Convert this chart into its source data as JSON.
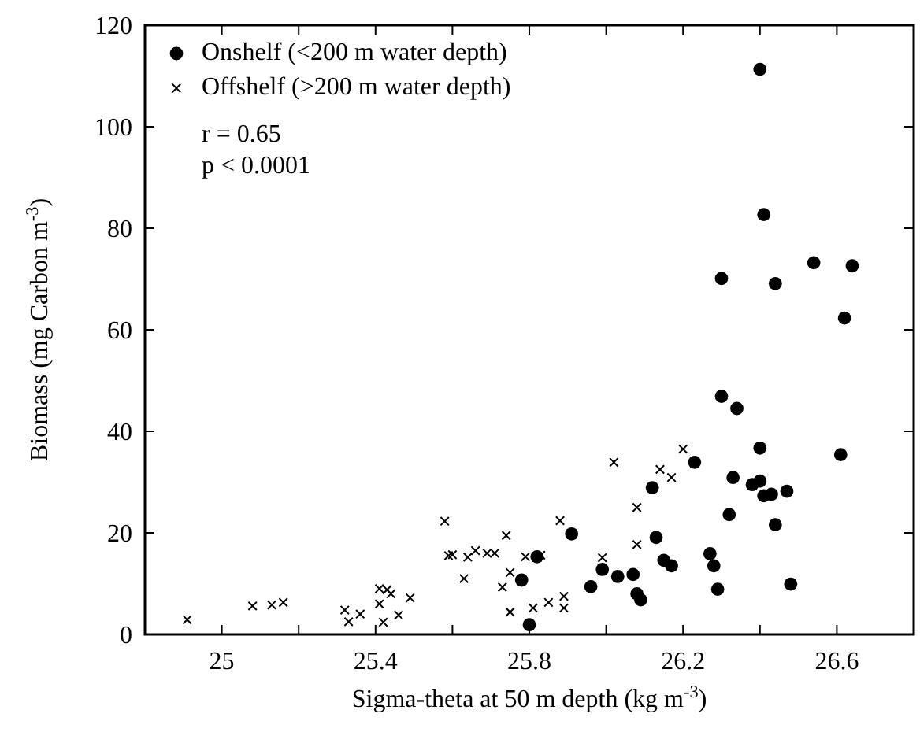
{
  "chart_data": {
    "type": "scatter",
    "xlabel": "Sigma-theta at 50 m depth (kg m$^{-3}$)",
    "ylabel": "Biomass (mg Carbon m$^{-3}$)",
    "xlim": [
      24.8,
      26.8
    ],
    "ylim": [
      0,
      120
    ],
    "xticks": [
      25,
      {
        "value": 25.2,
        "label": null
      },
      25.4,
      {
        "value": 25.6,
        "label": null
      },
      25.8,
      {
        "value": 26,
        "label": null
      },
      26.2,
      {
        "value": 26.4,
        "label": null
      },
      26.6
    ],
    "yticks": [
      0,
      20,
      40,
      60,
      80,
      100,
      120
    ],
    "legend": "top left",
    "grid": false,
    "annotations": [
      "r = 0.65",
      "p < 0.0001"
    ],
    "series": [
      {
        "name": "Onshelf (<200 m water depth)",
        "color": "#000000",
        "marker": "circle",
        "x": [
          25.8,
          25.78,
          25.82,
          25.91,
          25.96,
          25.99,
          26.03,
          26.07,
          26.08,
          26.09,
          26.12,
          26.13,
          26.15,
          26.17,
          26.23,
          26.27,
          26.28,
          26.29,
          26.3,
          26.3,
          26.32,
          26.33,
          26.34,
          26.38,
          26.4,
          26.4,
          26.41,
          26.43,
          26.44,
          26.44,
          26.47,
          26.48,
          26.54,
          26.61,
          26.62,
          26.64,
          26.4,
          26.41
        ],
        "values": [
          1.9,
          10.7,
          15.3,
          19.8,
          9.4,
          12.8,
          11.4,
          11.8,
          8,
          6.8,
          28.9,
          19.1,
          14.6,
          13.5,
          33.9,
          15.9,
          13.5,
          8.9,
          70.1,
          46.9,
          23.6,
          30.9,
          44.5,
          29.5,
          36.7,
          30.2,
          27.3,
          27.6,
          69.1,
          21.6,
          28.2,
          9.9,
          73.2,
          35.4,
          62.3,
          72.6,
          111.3,
          82.7
        ]
      },
      {
        "name": "Offshelf (>200 m water depth)",
        "color": "#000000",
        "marker": "cross",
        "x": [
          24.91,
          25.08,
          25.13,
          25.16,
          25.32,
          25.33,
          25.36,
          25.41,
          25.41,
          25.42,
          25.43,
          25.44,
          25.46,
          25.49,
          25.58,
          25.59,
          25.6,
          25.63,
          25.64,
          25.66,
          25.69,
          25.71,
          25.74,
          25.79,
          25.83,
          25.75,
          25.73,
          25.75,
          25.81,
          25.85,
          25.89,
          25.89,
          25.88,
          25.99,
          26.02,
          26.08,
          26.08,
          26.14,
          26.17,
          26.2
        ],
        "values": [
          2.9,
          5.6,
          5.8,
          6.3,
          4.8,
          2.5,
          4,
          6,
          9,
          2.4,
          8.8,
          8,
          3.8,
          7.2,
          22.3,
          15.5,
          15.7,
          11,
          15.2,
          16.5,
          16,
          16,
          19.5,
          15.3,
          15.6,
          12.2,
          9.3,
          4.4,
          5.2,
          6.3,
          7.5,
          5.2,
          22.4,
          15.1,
          33.9,
          17.7,
          25,
          32.5,
          30.9,
          36.5
        ]
      }
    ]
  }
}
